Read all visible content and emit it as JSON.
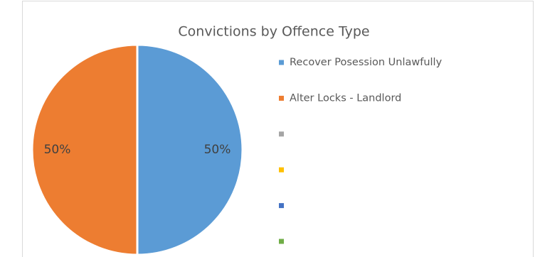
{
  "chart_data": {
    "type": "pie",
    "title": "Convictions by Offence Type",
    "categories": [
      "Recover Posession Unlawfully",
      "Alter Locks - Landlord",
      null,
      null,
      null,
      null
    ],
    "values": [
      50,
      50,
      0,
      0,
      0,
      0
    ],
    "value_labels": [
      "50%",
      "50%",
      null,
      null,
      null,
      null
    ],
    "colors": [
      "#5b9bd5",
      "#ed7d31",
      "#a5a5a5",
      "#ffc000",
      "#4472c4",
      "#70ad47"
    ]
  }
}
